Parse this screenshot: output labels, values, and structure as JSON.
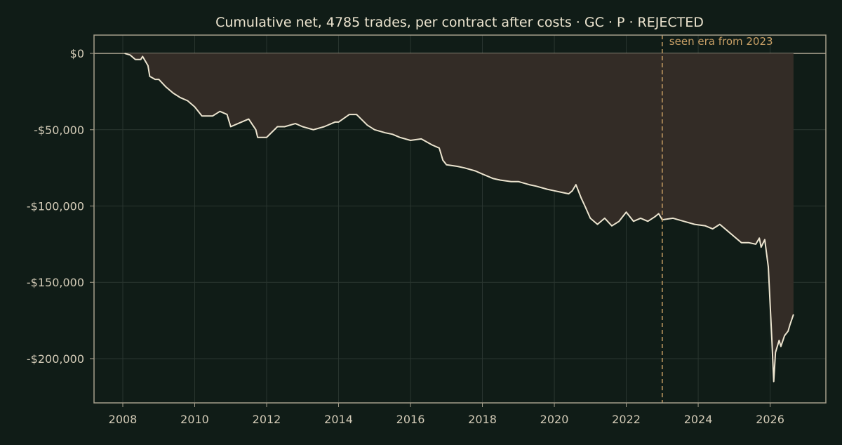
{
  "chart_data": {
    "type": "area",
    "title": "Cumulative net, 4785 trades, per contract after costs  ·  GC · P · REJECTED",
    "xlabel": "",
    "ylabel": "",
    "xlim": [
      2007.2,
      2027.55
    ],
    "ylim": [
      -229000,
      12000
    ],
    "grid": true,
    "legend": "none",
    "x_ticks": [
      {
        "value": 2008,
        "label": "2008"
      },
      {
        "value": 2010,
        "label": "2010"
      },
      {
        "value": 2012,
        "label": "2012"
      },
      {
        "value": 2014,
        "label": "2014"
      },
      {
        "value": 2016,
        "label": "2016"
      },
      {
        "value": 2018,
        "label": "2018"
      },
      {
        "value": 2020,
        "label": "2020"
      },
      {
        "value": 2022,
        "label": "2022"
      },
      {
        "value": 2024,
        "label": "2024"
      },
      {
        "value": 2026,
        "label": "2026"
      }
    ],
    "y_ticks": [
      {
        "value": 0,
        "label": "$0"
      },
      {
        "value": -50000,
        "label": "-$50,000"
      },
      {
        "value": -100000,
        "label": "-$100,000"
      },
      {
        "value": -150000,
        "label": "-$150,000"
      },
      {
        "value": -200000,
        "label": "-$200,000"
      }
    ],
    "annotations": [
      {
        "type": "vline",
        "x": 2023.0,
        "label": "seen era from 2023"
      }
    ],
    "series": [
      {
        "x": [
          2008.05,
          2008.2,
          2008.35,
          2008.5,
          2008.55,
          2008.7,
          2008.75,
          2008.9,
          2009.0,
          2009.2,
          2009.4,
          2009.6,
          2009.8,
          2010.0,
          2010.2,
          2010.3,
          2010.5,
          2010.7,
          2010.9,
          2011.0,
          2011.3,
          2011.5,
          2011.7,
          2011.75,
          2012.0,
          2012.3,
          2012.5,
          2012.8,
          2013.0,
          2013.3,
          2013.6,
          2013.9,
          2014.0,
          2014.3,
          2014.5,
          2014.8,
          2015.0,
          2015.3,
          2015.5,
          2015.7,
          2016.0,
          2016.3,
          2016.6,
          2016.8,
          2016.9,
          2017.0,
          2017.3,
          2017.5,
          2017.8,
          2018.0,
          2018.3,
          2018.5,
          2018.8,
          2019.0,
          2019.3,
          2019.5,
          2019.8,
          2020.0,
          2020.2,
          2020.4,
          2020.5,
          2020.6,
          2020.75,
          2020.85,
          2021.0,
          2021.2,
          2021.4,
          2021.6,
          2021.8,
          2022.0,
          2022.2,
          2022.4,
          2022.6,
          2022.8,
          2022.9,
          2023.0,
          2023.3,
          2023.6,
          2023.9,
          2024.2,
          2024.4,
          2024.6,
          2024.8,
          2025.0,
          2025.2,
          2025.4,
          2025.6,
          2025.7,
          2025.75,
          2025.85,
          2025.95,
          2026.05,
          2026.1,
          2026.15,
          2026.25,
          2026.3,
          2026.4,
          2026.5,
          2026.55,
          2026.65
        ],
        "values": [
          0,
          -1000,
          -4000,
          -4000,
          -2000,
          -8000,
          -15000,
          -17000,
          -17000,
          -22000,
          -26000,
          -29000,
          -31000,
          -35000,
          -41000,
          -41000,
          -41000,
          -38000,
          -40000,
          -48000,
          -45000,
          -43000,
          -50000,
          -55000,
          -55000,
          -48000,
          -48000,
          -46000,
          -48000,
          -50000,
          -48000,
          -45000,
          -45000,
          -40000,
          -40000,
          -47000,
          -50000,
          -52000,
          -53000,
          -55000,
          -57000,
          -56000,
          -60000,
          -62000,
          -70000,
          -73000,
          -74000,
          -75000,
          -77000,
          -79000,
          -82000,
          -83000,
          -84000,
          -84000,
          -86000,
          -87000,
          -89000,
          -90000,
          -91000,
          -92000,
          -90000,
          -86000,
          -95000,
          -100000,
          -108000,
          -112000,
          -108000,
          -113000,
          -110000,
          -104000,
          -110000,
          -108000,
          -110000,
          -107000,
          -105000,
          -109000,
          -108000,
          -110000,
          -112000,
          -113000,
          -115000,
          -112000,
          -116000,
          -120000,
          -124000,
          -124000,
          -125000,
          -121000,
          -127000,
          -122000,
          -140000,
          -188000,
          -215000,
          -196000,
          -188000,
          -192000,
          -185000,
          -182000,
          -178000,
          -171000
        ]
      }
    ],
    "colors": {
      "background": "#101c17",
      "line": "#ece4cf",
      "fill": "#332c26",
      "axes": "#a69f8c",
      "grid": "#2a3630",
      "text": "#d2cab6",
      "title": "#ece4cf",
      "annotation": "#c9a066"
    }
  }
}
